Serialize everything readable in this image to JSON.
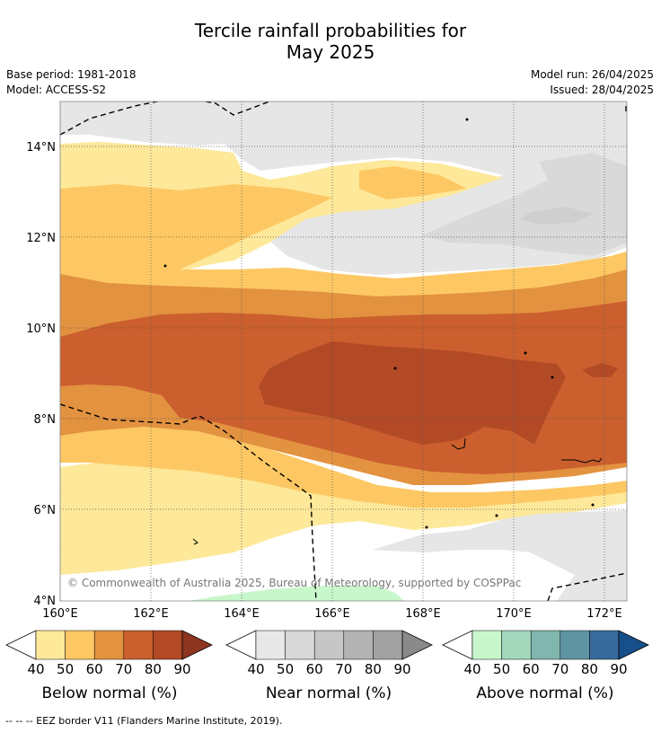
{
  "header": {
    "title_line1": "Tercile rainfall probabilities for",
    "title_line2": "May 2025",
    "base_period": "Base period: 1981-2018",
    "model": "Model: ACCESS-S2",
    "model_run": "Model run: 26/04/2025",
    "issued": "Issued: 28/04/2025"
  },
  "map": {
    "lat_labels": [
      "14°N",
      "12°N",
      "10°N",
      "8°N",
      "6°N",
      "4°N"
    ],
    "lon_labels": [
      "160°E",
      "162°E",
      "164°E",
      "166°E",
      "168°E",
      "170°E",
      "172°E"
    ],
    "copyright": "© Commonwealth of Australia 2025, Bureau of Meteorology, supported by COSPPac",
    "border_style": "dashed",
    "grid": "dotted"
  },
  "colorbars": [
    {
      "label": "Below normal (%)",
      "ticks": [
        "40",
        "50",
        "60",
        "70",
        "80",
        "90"
      ],
      "colors": [
        "#fee89a",
        "#fdc863",
        "#e3923f",
        "#cb5f2e",
        "#b24a26",
        "#8f3620"
      ]
    },
    {
      "label": "Near normal (%)",
      "ticks": [
        "40",
        "50",
        "60",
        "70",
        "80",
        "90"
      ],
      "colors": [
        "#e8e8e8",
        "#d8d8d8",
        "#c6c6c6",
        "#b3b3b3",
        "#a1a1a1",
        "#8a8a8a"
      ]
    },
    {
      "label": "Above normal (%)",
      "ticks": [
        "40",
        "50",
        "60",
        "70",
        "80",
        "90"
      ],
      "colors": [
        "#c9f7cc",
        "#a3d8bd",
        "#80b6ae",
        "#5f95a2",
        "#386a9c",
        "#164f8a"
      ]
    }
  ],
  "footnote": "--  --  -- EEZ border V11 (Flanders Marine Institute, 2019)."
}
